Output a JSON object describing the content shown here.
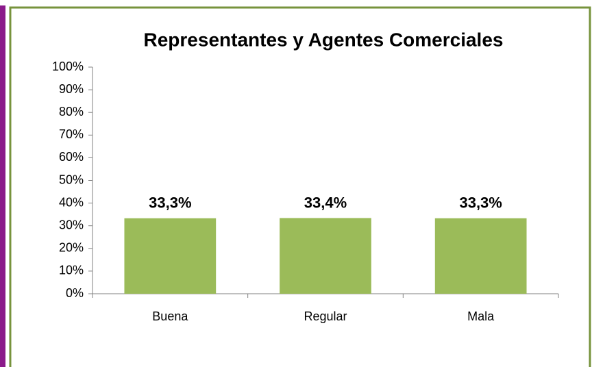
{
  "chart_data": {
    "type": "bar",
    "title": "Representantes y Agentes Comerciales",
    "categories": [
      "Buena",
      "Regular",
      "Mala"
    ],
    "values": [
      33.3,
      33.4,
      33.3
    ],
    "value_labels": [
      "33,3%",
      "33,4%",
      "33,3%"
    ],
    "color": "#9bbb59",
    "ylim": [
      0,
      100
    ],
    "yticks": [
      {
        "value": 0,
        "label": "0%"
      },
      {
        "value": 10,
        "label": "10%"
      },
      {
        "value": 20,
        "label": "20%"
      },
      {
        "value": 30,
        "label": "30%"
      },
      {
        "value": 40,
        "label": "40%"
      },
      {
        "value": 50,
        "label": "50%"
      },
      {
        "value": 60,
        "label": "60%"
      },
      {
        "value": 70,
        "label": "70%"
      },
      {
        "value": 80,
        "label": "80%"
      },
      {
        "value": 90,
        "label": "90%"
      },
      {
        "value": 100,
        "label": "100%"
      }
    ],
    "grid": false
  }
}
